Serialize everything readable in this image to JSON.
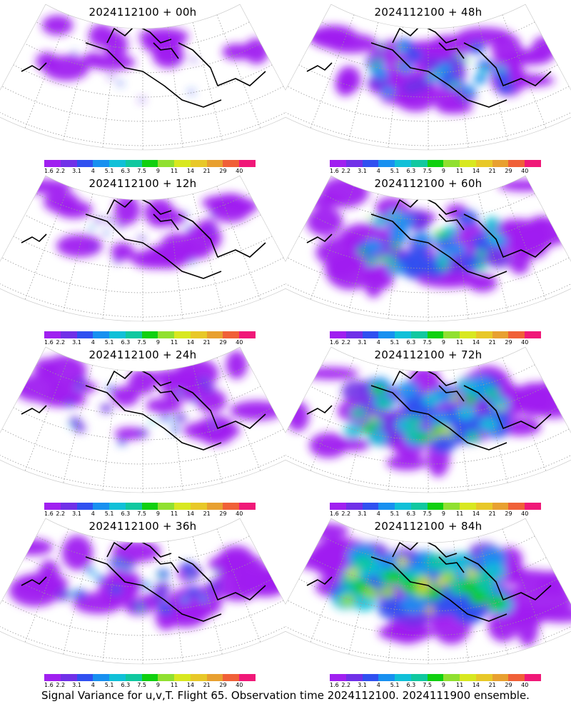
{
  "panels": [
    {
      "title": "2024112100 + 00h",
      "lead_hours": 0,
      "intensity": 0.15
    },
    {
      "title": "2024112100 + 48h",
      "lead_hours": 48,
      "intensity": 0.55
    },
    {
      "title": "2024112100 + 12h",
      "lead_hours": 12,
      "intensity": 0.25
    },
    {
      "title": "2024112100 + 60h",
      "lead_hours": 60,
      "intensity": 0.65
    },
    {
      "title": "2024112100 + 24h",
      "lead_hours": 24,
      "intensity": 0.35
    },
    {
      "title": "2024112100 + 72h",
      "lead_hours": 72,
      "intensity": 0.75
    },
    {
      "title": "2024112100 + 36h",
      "lead_hours": 36,
      "intensity": 0.45
    },
    {
      "title": "2024112100 + 84h",
      "lead_hours": 84,
      "intensity": 0.88
    }
  ],
  "colorbar": {
    "labels": [
      "1.6",
      "2.2",
      "3.1",
      "4",
      "5.1",
      "6.3",
      "7.5",
      "9",
      "11",
      "14",
      "21",
      "29",
      "40"
    ],
    "colors": [
      "#a020f0",
      "#7030e8",
      "#3050f0",
      "#1890f0",
      "#10c0d8",
      "#10c8a0",
      "#10d010",
      "#90e030",
      "#d8e820",
      "#e8c828",
      "#e8a030",
      "#f06038",
      "#f01878"
    ]
  },
  "caption": "Signal Variance for u,v,T. Flight 65. Observation time 2024112100. 2024111900 ensemble."
}
